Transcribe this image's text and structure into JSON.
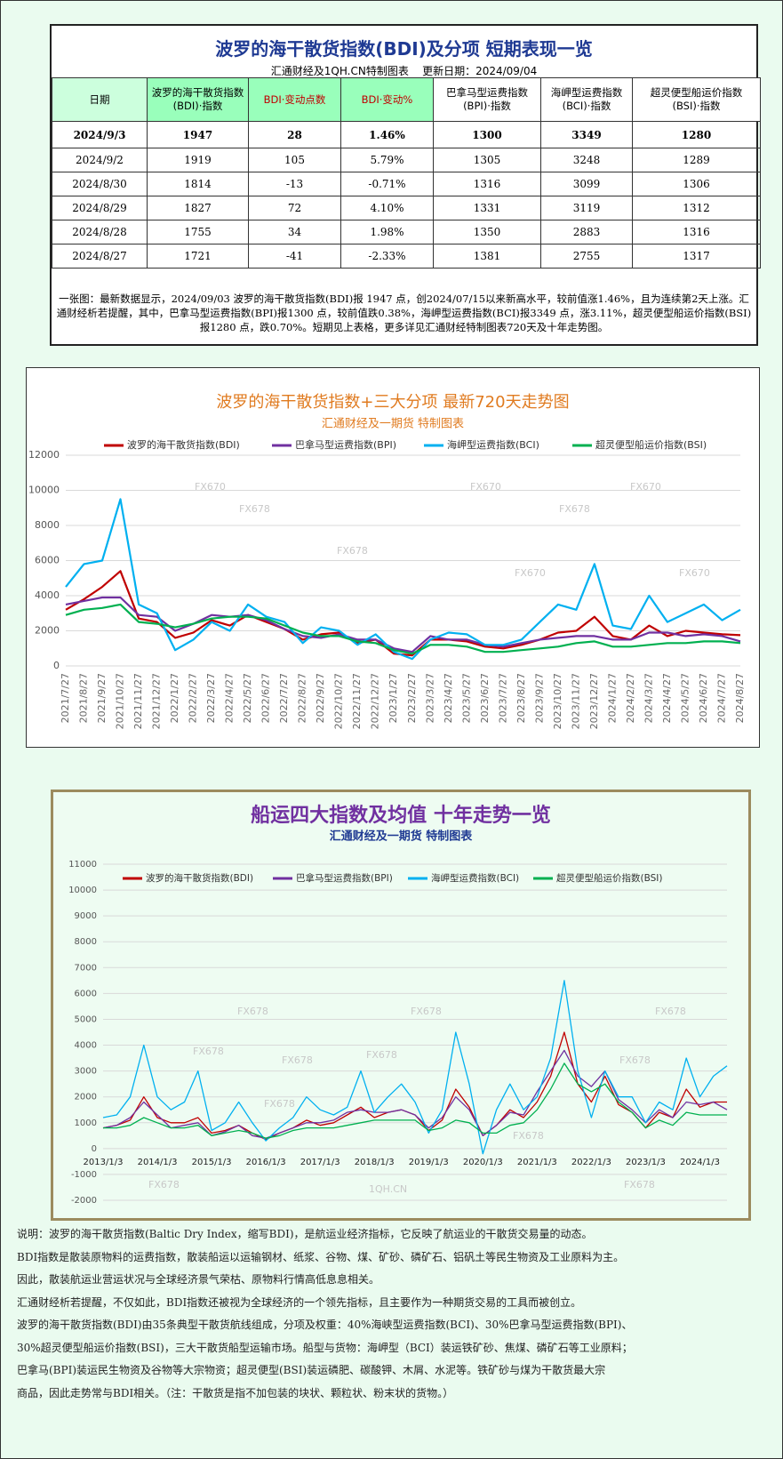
{
  "table": {
    "title": "波罗的海干散货指数(BDI)及分项  短期表现一览",
    "subtitle": "汇通财经及1QH.CN特制图表    更新日期：2024/09/04",
    "header": [
      [
        "日期"
      ],
      [
        "波罗的海干散货指数",
        "(BDI)·指数"
      ],
      [
        "BDI·变动点数"
      ],
      [
        "BDI·变动%"
      ],
      [
        "巴拿马型运费指数",
        "(BPI)·指数"
      ],
      [
        "海岬型运费指数",
        "(BCI)·指数"
      ],
      [
        "超灵便型船运价指数",
        "(BSI)·指数"
      ]
    ],
    "rows": [
      [
        "2024/9/3",
        "1947",
        "28",
        "1.46%",
        "1300",
        "3349",
        "1280"
      ],
      [
        "2024/9/2",
        "1919",
        "105",
        "5.79%",
        "1305",
        "3248",
        "1289"
      ],
      [
        "2024/8/30",
        "1814",
        "-13",
        "-0.71%",
        "1316",
        "3099",
        "1306"
      ],
      [
        "2024/8/29",
        "1827",
        "72",
        "4.10%",
        "1331",
        "3119",
        "1312"
      ],
      [
        "2024/8/28",
        "1755",
        "34",
        "1.98%",
        "1350",
        "2883",
        "1316"
      ],
      [
        "2024/8/27",
        "1721",
        "-41",
        "-2.33%",
        "1381",
        "2755",
        "1317"
      ]
    ],
    "note": "一张图：最新数据显示，2024/09/03 波罗的海干散货指数(BDI)报 1947 点，创2024/07/15以来新高水平，较前值涨1.46%，且为连续第2天上涨。汇通财经析若提醒，其中，巴拿马型运费指数(BPI)报1300 点，较前值跌0.38%，海岬型运费指数(BCI)报3349 点，涨3.11%，超灵便型船运价指数(BSI)报1280 点，跌0.70%。短期见上表格，更多详见汇通财经特制图表720天及十年走势图。"
  },
  "chart_data": [
    {
      "type": "line",
      "title": "波罗的海干散货指数+三大分项  最新720天走势图",
      "subtitle": "汇通财经及一期货  特制图表",
      "annotations": [
        "FX670",
        "FX678"
      ],
      "grid": true,
      "categories": [
        "2021/7/27",
        "2021/8/27",
        "2021/9/27",
        "2021/10/27",
        "2021/11/27",
        "2021/12/27",
        "2022/1/27",
        "2022/2/27",
        "2022/3/27",
        "2022/4/27",
        "2022/5/27",
        "2022/6/27",
        "2022/7/27",
        "2022/8/27",
        "2022/9/27",
        "2022/10/27",
        "2022/11/27",
        "2022/12/27",
        "2023/1/27",
        "2023/2/27",
        "2023/3/27",
        "2023/4/27",
        "2023/5/27",
        "2023/6/27",
        "2023/7/27",
        "2023/8/27",
        "2023/9/27",
        "2023/10/27",
        "2023/11/27",
        "2023/12/27",
        "2024/1/27",
        "2024/2/27",
        "2024/3/27",
        "2024/4/27",
        "2024/5/27",
        "2024/6/27",
        "2024/7/27",
        "2024/8/27"
      ],
      "ylim": [
        0,
        12000
      ],
      "yticks": [
        0,
        2000,
        4000,
        6000,
        8000,
        10000,
        12000
      ],
      "series": [
        {
          "name": "波罗的海干散货指数(BDI)",
          "color": "#c00000",
          "values": [
            3200,
            3800,
            4500,
            5400,
            2700,
            2500,
            1600,
            1900,
            2600,
            2300,
            2900,
            2500,
            2100,
            1500,
            1800,
            1900,
            1300,
            1500,
            700,
            600,
            1500,
            1500,
            1400,
            1100,
            1000,
            1200,
            1500,
            1900,
            2000,
            2800,
            1700,
            1500,
            2300,
            1700,
            2000,
            1900,
            1800,
            1750
          ]
        },
        {
          "name": "巴拿马型运费指数(BPI)",
          "color": "#7030a0",
          "values": [
            3500,
            3700,
            3900,
            3900,
            2900,
            2800,
            2000,
            2400,
            2900,
            2800,
            2900,
            2600,
            2100,
            1700,
            1600,
            1800,
            1500,
            1500,
            1000,
            800,
            1700,
            1500,
            1500,
            1200,
            1100,
            1300,
            1500,
            1600,
            1700,
            1700,
            1500,
            1500,
            1900,
            1900,
            1700,
            1800,
            1700,
            1400
          ]
        },
        {
          "name": "海岬型运费指数(BCI)",
          "color": "#00b0f0",
          "values": [
            4500,
            5800,
            6000,
            9500,
            3500,
            3000,
            900,
            1500,
            2500,
            2000,
            3500,
            2800,
            2500,
            1300,
            2200,
            2000,
            1200,
            1800,
            800,
            400,
            1500,
            1900,
            1800,
            1200,
            1200,
            1500,
            2500,
            3500,
            3200,
            5800,
            2300,
            2100,
            4000,
            2500,
            3000,
            3500,
            2600,
            3200
          ]
        },
        {
          "name": "超灵便型船运价指数(BSI)",
          "color": "#00b050",
          "values": [
            2900,
            3200,
            3300,
            3500,
            2500,
            2400,
            2200,
            2400,
            2700,
            2800,
            2800,
            2700,
            2300,
            1900,
            1700,
            1700,
            1400,
            1300,
            900,
            700,
            1200,
            1200,
            1100,
            800,
            800,
            900,
            1000,
            1100,
            1300,
            1400,
            1100,
            1100,
            1200,
            1300,
            1300,
            1400,
            1400,
            1300
          ]
        }
      ]
    },
    {
      "type": "line",
      "title": "船运四大指数及均值 十年走势一览",
      "subtitle": "汇通财经及一期货 特制图表",
      "annotations": [
        "FX678",
        "1QH.CN"
      ],
      "grid": true,
      "categories": [
        "2013/1/3",
        null,
        null,
        null,
        "2014/1/3",
        null,
        null,
        null,
        "2015/1/3",
        null,
        null,
        null,
        "2016/1/3",
        null,
        null,
        null,
        "2017/1/3",
        null,
        null,
        null,
        "2018/1/3",
        null,
        null,
        null,
        "2019/1/3",
        null,
        null,
        null,
        "2020/1/3",
        null,
        null,
        null,
        "2021/1/3",
        null,
        null,
        null,
        "2022/1/3",
        null,
        null,
        null,
        "2023/1/3",
        null,
        null,
        null,
        "2024/1/3",
        null,
        null
      ],
      "ylim": [
        -2000,
        11000
      ],
      "yticks": [
        -2000,
        -1000,
        0,
        1000,
        2000,
        3000,
        4000,
        5000,
        6000,
        7000,
        8000,
        9000,
        10000,
        11000
      ],
      "series": [
        {
          "name": "波罗的海干散货指数(BDI)",
          "color": "#c00000",
          "values": [
            800,
            900,
            1100,
            2000,
            1200,
            1000,
            1000,
            1200,
            600,
            700,
            900,
            600,
            350,
            600,
            800,
            1100,
            900,
            1000,
            1300,
            1600,
            1200,
            1400,
            1500,
            1300,
            700,
            1100,
            2300,
            1600,
            500,
            900,
            1500,
            1200,
            1800,
            2800,
            4500,
            2500,
            1800,
            2800,
            1700,
            1400,
            800,
            1400,
            1200,
            2300,
            1600,
            1800,
            1800
          ]
        },
        {
          "name": "巴拿马型运费指数(BPI)",
          "color": "#7030a0",
          "values": [
            800,
            900,
            1200,
            1800,
            1300,
            800,
            900,
            1000,
            500,
            650,
            900,
            500,
            400,
            600,
            800,
            1000,
            1000,
            1100,
            1400,
            1500,
            1400,
            1400,
            1500,
            1300,
            800,
            1200,
            2000,
            1500,
            500,
            900,
            1400,
            1300,
            2200,
            3000,
            3800,
            2800,
            2400,
            3000,
            1900,
            1500,
            1000,
            1500,
            1200,
            1800,
            1700,
            1800,
            1500
          ]
        },
        {
          "name": "海岬型运费指数(BCI)",
          "color": "#00b0f0",
          "values": [
            1200,
            1300,
            2000,
            4000,
            2000,
            1500,
            1800,
            3000,
            700,
            1000,
            1800,
            1000,
            300,
            800,
            1200,
            2000,
            1500,
            1300,
            1600,
            3000,
            1400,
            2000,
            2500,
            1800,
            600,
            1500,
            4500,
            2500,
            -200,
            1500,
            2500,
            1500,
            2000,
            3500,
            6500,
            3000,
            1200,
            3000,
            2000,
            2000,
            1000,
            1800,
            1500,
            3500,
            2000,
            2800,
            3200
          ]
        },
        {
          "name": "超灵便型船运价指数(BSI)",
          "color": "#00b050",
          "values": [
            800,
            800,
            900,
            1200,
            1000,
            800,
            800,
            900,
            500,
            600,
            700,
            600,
            400,
            500,
            700,
            800,
            800,
            800,
            900,
            1000,
            1100,
            1100,
            1100,
            1100,
            700,
            800,
            1100,
            1000,
            600,
            600,
            900,
            1000,
            1500,
            2300,
            3300,
            2500,
            2200,
            2500,
            1800,
            1400,
            800,
            1100,
            900,
            1400,
            1300,
            1300,
            1300
          ]
        }
      ]
    }
  ],
  "notes": [
    "说明：波罗的海干散货指数(Baltic Dry Index，缩写BDI)，是航运业经济指标，它反映了航运业的干散货交易量的动态。",
    "BDI指数是散装原物料的运费指数，散装船运以运输钢材、纸浆、谷物、煤、矿砂、磷矿石、铝矾土等民生物资及工业原料为主。",
    "因此，散装航运业营运状况与全球经济景气荣枯、原物料行情高低息息相关。",
    "汇通财经析若提醒，不仅如此，BDI指数还被视为全球经济的一个领先指标，且主要作为一种期货交易的工具而被创立。",
    "波罗的海干散货指数(BDI)由35条典型干散货航线组成，分项及权重：40%海峡型运费指数(BCI)、30%巴拿马型运费指数(BPI)、",
    "30%超灵便型船运价指数(BSI)，三大干散货船型运输市场。船型与货物：海岬型（BCI）装运铁矿砂、焦煤、磷矿石等工业原料；",
    "巴拿马(BPI)装运民生物资及谷物等大宗物资；超灵便型(BSI)装运磷肥、碳酸钾、木屑、水泥等。铁矿砂与煤为干散货最大宗",
    "商品，因此走势常与BDI相关。（注：干散货是指不加包装的块状、颗粒状、粉末状的货物。）"
  ]
}
